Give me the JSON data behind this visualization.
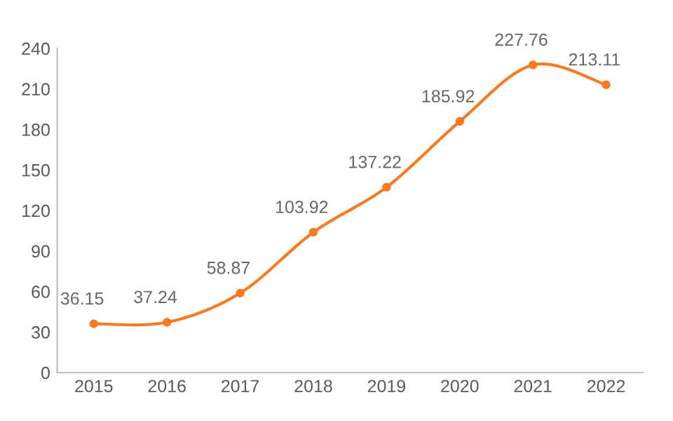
{
  "chart_data": {
    "type": "line",
    "categories": [
      "2015",
      "2016",
      "2017",
      "2018",
      "2019",
      "2020",
      "2021",
      "2022"
    ],
    "series": [
      {
        "color": "#f97a22",
        "values": [
          36.15,
          37.24,
          58.87,
          103.92,
          137.22,
          185.92,
          227.76,
          213.11
        ]
      }
    ],
    "ylim": [
      0,
      240
    ],
    "yticks": [
      0,
      30,
      60,
      90,
      120,
      150,
      180,
      210,
      240
    ],
    "data_labels": true,
    "grid": false,
    "marker": "circle",
    "line_style": "solid"
  }
}
